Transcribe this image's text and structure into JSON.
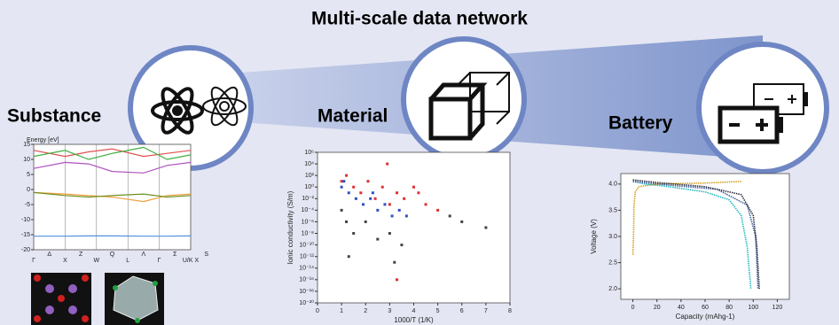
{
  "title": "Multi-scale data network",
  "stages": [
    {
      "label": "Substance"
    },
    {
      "label": "Material"
    },
    {
      "label": "Battery"
    }
  ],
  "charts": [
    {
      "type": "line",
      "y_label": "Energy [eV]",
      "xlim": [
        0,
        1
      ],
      "ylim": [
        -20,
        15
      ],
      "yticks": [
        15,
        10,
        5,
        0,
        -5,
        -10,
        -15,
        -20
      ],
      "kpoints_bottom": [
        "Γ",
        "X",
        "W",
        "L",
        "Γ",
        "U/K X"
      ],
      "kpoints_top": [
        "Δ",
        "Z",
        "Q",
        "Λ",
        "Σ",
        "S"
      ],
      "series": [
        {
          "color": "#e05050",
          "x": [
            0,
            0.2,
            0.35,
            0.5,
            0.7,
            0.85,
            1
          ],
          "values": [
            13,
            11,
            12.5,
            13.5,
            11,
            12,
            13
          ]
        },
        {
          "color": "#40b040",
          "x": [
            0,
            0.2,
            0.35,
            0.5,
            0.7,
            0.85,
            1
          ],
          "values": [
            11,
            13,
            10,
            12,
            14,
            10,
            11.5
          ]
        },
        {
          "color": "#b050c0",
          "x": [
            0,
            0.2,
            0.35,
            0.5,
            0.7,
            0.85,
            1
          ],
          "values": [
            7,
            9,
            8.5,
            6,
            5.5,
            8,
            9
          ]
        },
        {
          "color": "#f0a040",
          "x": [
            0,
            0.2,
            0.35,
            0.5,
            0.7,
            0.85,
            1
          ],
          "values": [
            -1,
            -1.5,
            -2,
            -2.5,
            -4,
            -2,
            -1.5
          ]
        },
        {
          "color": "#709020",
          "x": [
            0,
            0.2,
            0.35,
            0.5,
            0.7,
            0.85,
            1
          ],
          "values": [
            -1,
            -2,
            -2.5,
            -2,
            -1.5,
            -2.5,
            -2
          ]
        },
        {
          "color": "#5090e0",
          "x": [
            0,
            0.2,
            0.35,
            0.5,
            0.7,
            0.85,
            1
          ],
          "values": [
            -15.5,
            -15.5,
            -15.4,
            -15.4,
            -15.5,
            -15.5,
            -15.4
          ]
        }
      ]
    },
    {
      "type": "scatter",
      "x_label": "1000/T (1/K)",
      "y_label": "Ionic conductivity (S/m)",
      "log_y": true,
      "xlim": [
        0,
        8
      ],
      "ylim": [
        1e-20,
        1000000.0
      ],
      "xticks": [
        0,
        1,
        2,
        3,
        4,
        5,
        6,
        7,
        8
      ],
      "yticks": [
        {
          "value": 1000000.0,
          "label": "10⁶"
        },
        {
          "value": 10000.0,
          "label": "10⁴"
        },
        {
          "value": 100,
          "label": "10²"
        },
        {
          "value": 1,
          "label": "10⁰"
        },
        {
          "value": 0.01,
          "label": "10⁻²"
        },
        {
          "value": 0.0001,
          "label": "10⁻⁴"
        },
        {
          "value": 1e-06,
          "label": "10⁻⁶"
        },
        {
          "value": 1e-08,
          "label": "10⁻⁸"
        },
        {
          "value": 1e-10,
          "label": "10⁻¹⁰"
        },
        {
          "value": 1e-12,
          "label": "10⁻¹²"
        },
        {
          "value": 1e-14,
          "label": "10⁻¹⁴"
        },
        {
          "value": 1e-16,
          "label": "10⁻¹⁶"
        },
        {
          "value": 1e-18,
          "label": "10⁻¹⁸"
        },
        {
          "value": 1e-20,
          "label": "10⁻²⁰"
        }
      ],
      "series": [
        {
          "color": "#e03030",
          "x": [
            1,
            1.2,
            1.5,
            1.8,
            2.1,
            2.4,
            2.7,
            3,
            3.3,
            3.6,
            4,
            4.5,
            5,
            3.3,
            2.9,
            4.2
          ],
          "values": [
            10,
            100,
            1,
            0.1,
            10,
            0.01,
            1,
            0.001,
            0.1,
            0.01,
            1,
            0.001,
            0.0001,
            1e-16,
            10000,
            0.1
          ]
        },
        {
          "color": "#3050c0",
          "x": [
            1,
            1.3,
            1.6,
            1.9,
            2.2,
            2.5,
            2.8,
            3.1,
            3.4,
            3.7,
            1.1,
            2.3
          ],
          "values": [
            1,
            0.1,
            0.01,
            0.001,
            0.01,
            0.0001,
            0.001,
            1e-05,
            0.0001,
            1e-05,
            10,
            0.1
          ]
        },
        {
          "color": "#444444",
          "x": [
            1,
            1.2,
            1.5,
            2,
            2.5,
            3,
            3.5,
            5.5,
            6,
            7,
            1.3,
            3.2
          ],
          "values": [
            0.0001,
            1e-06,
            1e-08,
            1e-06,
            1e-09,
            1e-08,
            1e-10,
            1e-05,
            1e-06,
            1e-07,
            1e-12,
            1e-13
          ]
        }
      ]
    },
    {
      "type": "line",
      "x_label": "Capacity (mAhg-1)",
      "y_label": "Voltage (V)",
      "xlim": [
        -10,
        130
      ],
      "ylim": [
        1.8,
        4.2
      ],
      "xticks": [
        0,
        20,
        40,
        60,
        80,
        100,
        120
      ],
      "yticks": [
        {
          "value": 2,
          "label": "2.0"
        },
        {
          "value": 2.5,
          "label": "2.5"
        },
        {
          "value": 3,
          "label": "3.0"
        },
        {
          "value": 3.5,
          "label": "3.5"
        },
        {
          "value": 4,
          "label": "4.0"
        }
      ],
      "series": [
        {
          "color": "#d0a020",
          "x": [
            0,
            0.5,
            1,
            2,
            5,
            20,
            60,
            90
          ],
          "values": [
            2.65,
            3.0,
            3.6,
            3.85,
            3.95,
            4.0,
            4.02,
            4.05
          ]
        },
        {
          "color": "#20b8c0",
          "x": [
            0,
            10,
            30,
            60,
            80,
            90,
            95,
            98
          ],
          "values": [
            4.05,
            4.0,
            3.95,
            3.85,
            3.7,
            3.4,
            2.8,
            2.0
          ]
        },
        {
          "color": "#4060a0",
          "x": [
            0,
            30,
            70,
            95,
            102,
            104
          ],
          "values": [
            4.05,
            3.98,
            3.9,
            3.6,
            3.0,
            2.0
          ]
        },
        {
          "color": "#303040",
          "x": [
            0,
            20,
            60,
            90,
            100,
            103,
            105
          ],
          "values": [
            4.08,
            4.03,
            3.95,
            3.8,
            3.4,
            2.8,
            2.0
          ]
        }
      ]
    }
  ]
}
